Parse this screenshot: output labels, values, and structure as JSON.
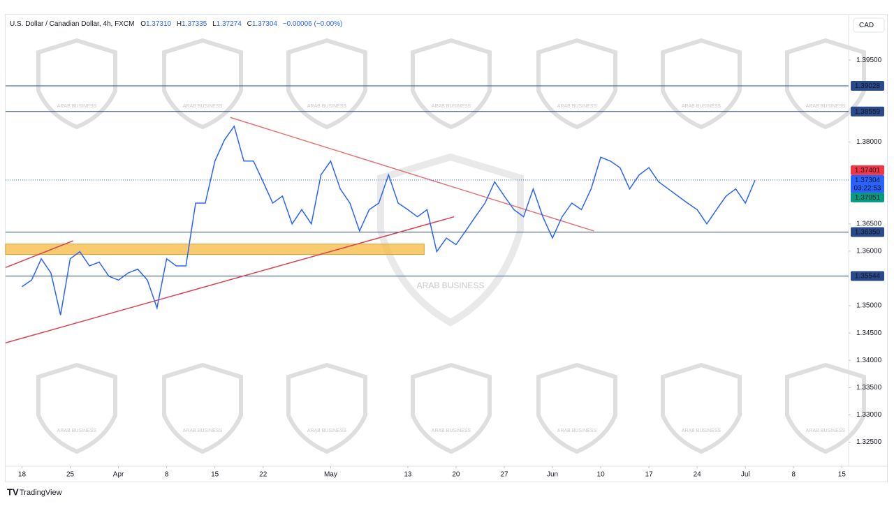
{
  "header": {
    "symbol": "U.S. Dollar / Canadian Dollar, 4h, FXCM",
    "open_label": "O",
    "open": "1.37310",
    "high_label": "H",
    "high": "1.37335",
    "low_label": "L",
    "low": "1.37274",
    "close_label": "C",
    "close": "1.37304",
    "change": "−0.00006 (−0.00%)"
  },
  "currency_button": "CAD",
  "brand": "TradingView",
  "watermark": "ARAB BUSINESS",
  "chart_data": {
    "type": "line",
    "x": [
      0,
      1,
      2,
      3,
      4,
      5,
      6,
      7,
      8,
      9,
      10,
      11,
      12,
      13,
      14,
      15,
      16,
      17,
      18,
      19,
      20,
      21,
      22,
      23,
      24,
      25,
      26,
      27,
      28,
      29,
      30,
      31,
      32,
      33,
      34,
      35,
      36,
      37,
      38,
      39,
      40,
      41,
      42,
      43,
      44,
      45,
      46,
      47,
      48,
      49,
      50,
      51,
      52,
      53,
      54,
      55,
      56,
      57,
      58,
      59,
      60,
      61,
      62,
      63,
      64,
      65,
      66,
      67,
      68,
      69,
      70,
      71,
      72,
      73,
      74,
      75,
      76
    ],
    "series": [
      {
        "color": "#2962ff",
        "values": [
          1.3535,
          1.3547,
          1.3586,
          1.356,
          1.3483,
          1.3586,
          1.3599,
          1.3573,
          1.358,
          1.3554,
          1.3547,
          1.356,
          1.3567,
          1.3547,
          1.3496,
          1.3586,
          1.3573,
          1.3573,
          1.3688,
          1.3688,
          1.3765,
          1.3804,
          1.3829,
          1.3765,
          1.3765,
          1.3727,
          1.3688,
          1.3701,
          1.365,
          1.3676,
          1.365,
          1.374,
          1.3765,
          1.3714,
          1.3688,
          1.3637,
          1.3676,
          1.3688,
          1.374,
          1.3688,
          1.3676,
          1.3663,
          1.3676,
          1.3599,
          1.3624,
          1.3612,
          1.3637,
          1.3663,
          1.3688,
          1.3727,
          1.3701,
          1.3676,
          1.3663,
          1.3714,
          1.3663,
          1.3624,
          1.3663,
          1.3688,
          1.3676,
          1.3714,
          1.3772,
          1.3765,
          1.3753,
          1.3714,
          1.374,
          1.3753,
          1.3727,
          1.3714,
          1.3701,
          1.3688,
          1.3676,
          1.365,
          1.3676,
          1.3701,
          1.3714,
          1.3688,
          1.373
        ]
      }
    ],
    "xlim": [
      -1.7,
      85.7
    ],
    "xticks": [
      {
        "value": 0,
        "label": "18"
      },
      {
        "value": 5,
        "label": "25"
      },
      {
        "value": 10,
        "label": "Apr"
      },
      {
        "value": 15,
        "label": "8"
      },
      {
        "value": 20,
        "label": "15"
      },
      {
        "value": 25,
        "label": "22"
      },
      {
        "value": 32,
        "label": "May"
      },
      {
        "value": 40,
        "label": "13"
      },
      {
        "value": 45,
        "label": "20"
      },
      {
        "value": 50,
        "label": "27"
      },
      {
        "value": 55,
        "label": "Jun"
      },
      {
        "value": 60,
        "label": "10"
      },
      {
        "value": 65,
        "label": "17"
      },
      {
        "value": 70,
        "label": "24"
      },
      {
        "value": 75,
        "label": "Jul"
      },
      {
        "value": 80,
        "label": "8"
      },
      {
        "value": 85,
        "label": "15"
      }
    ],
    "ylim": [
      1.3206,
      1.4032
    ],
    "yticks": [
      {
        "value": 1.395,
        "label": "1.39500"
      },
      {
        "value": 1.38,
        "label": "1.38000"
      },
      {
        "value": 1.365,
        "label": "1.36500"
      },
      {
        "value": 1.36,
        "label": "1.36000"
      },
      {
        "value": 1.35,
        "label": "1.35000"
      },
      {
        "value": 1.345,
        "label": "1.34500"
      },
      {
        "value": 1.34,
        "label": "1.34000"
      },
      {
        "value": 1.335,
        "label": "1.33500"
      },
      {
        "value": 1.33,
        "label": "1.33000"
      },
      {
        "value": 1.325,
        "label": "1.32500"
      }
    ],
    "levels": [
      {
        "value": 1.39028,
        "label": "1.39028",
        "color": "#2a4a8a"
      },
      {
        "value": 1.38559,
        "label": "1.38559",
        "color": "#2a4a8a"
      },
      {
        "value": 1.3635,
        "label": "1.36350",
        "color": "#2a4a8a"
      },
      {
        "value": 1.35544,
        "label": "1.35544",
        "color": "#2a4a8a"
      }
    ],
    "price_badges": [
      {
        "value": 1.37401,
        "label": "1.37401",
        "color": "#f23645"
      },
      {
        "value": 1.37304,
        "label": "1.37304",
        "color": "#2962ff"
      },
      {
        "value": 1.37051,
        "label": "1.37051",
        "color": "#089981"
      }
    ],
    "countdown": "03:22:53",
    "trendlines": [
      {
        "x": [
          21.6,
          59.3
        ],
        "y": [
          1.3845,
          1.3637
        ],
        "color": "#e57373"
      },
      {
        "x": [
          -1.7,
          44.8
        ],
        "y": [
          1.3432,
          1.3663
        ],
        "color": "#d9434f"
      },
      {
        "x": [
          -1.7,
          5.3
        ],
        "y": [
          1.357,
          1.3619
        ],
        "color": "#d9434f"
      }
    ],
    "zone": {
      "x": [
        -1.7,
        41.7
      ],
      "y": [
        1.3594,
        1.3613
      ],
      "color": "#f5b942"
    }
  }
}
